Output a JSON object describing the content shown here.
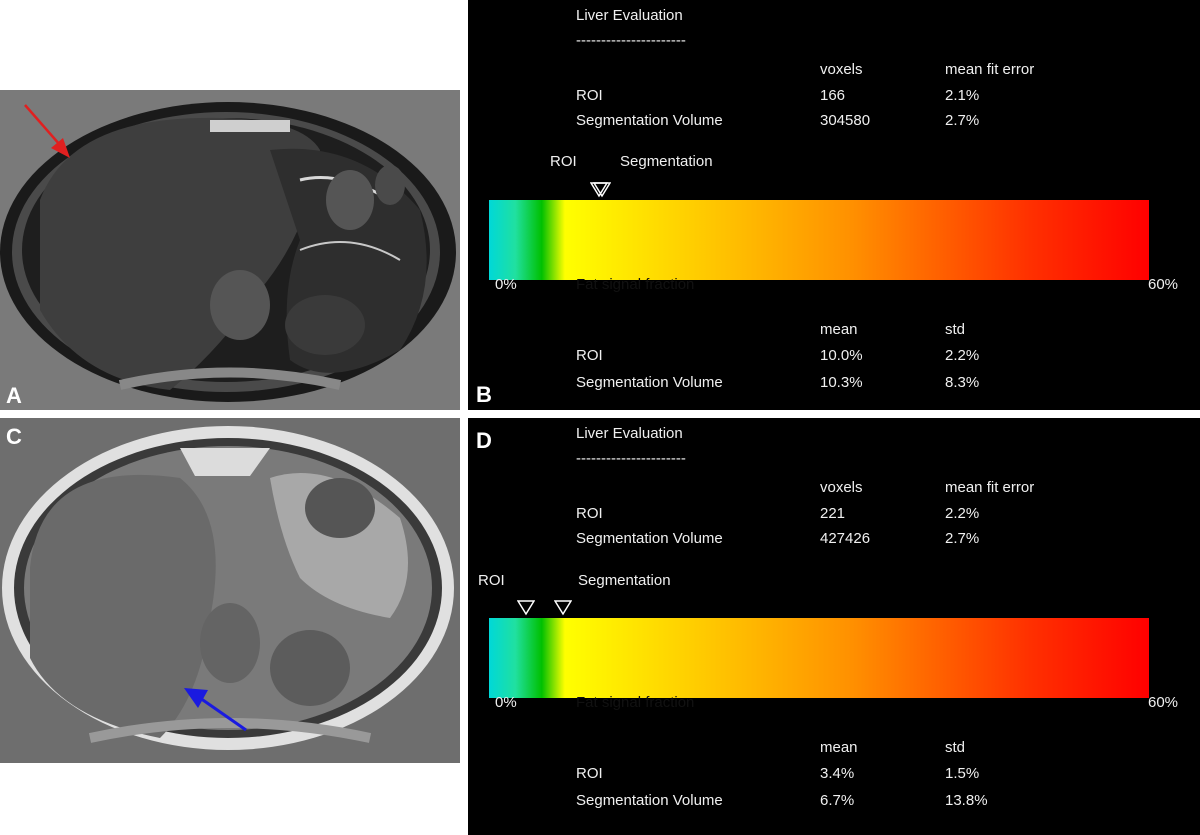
{
  "panels": [
    {
      "letter": "A",
      "arrow_color": "#e02020"
    },
    {
      "letter": "B",
      "title": "Liver Evaluation",
      "divider": "----------------------",
      "fit_table": {
        "col1": "voxels",
        "col2": "mean fit error",
        "rows": [
          {
            "label": "ROI",
            "v1": "166",
            "v2": "2.1%"
          },
          {
            "label": "Segmentation Volume",
            "v1": "304580",
            "v2": "2.7%"
          }
        ]
      },
      "markers": {
        "roi_label": "ROI",
        "seg_label": "Segmentation",
        "roi_value": 10.0,
        "seg_value": 10.3
      },
      "scale": {
        "min_label": "0%",
        "max_label": "60%",
        "caption": "Fat signal fraction",
        "min": 0,
        "max": 60
      },
      "stats_table": {
        "col1": "mean",
        "col2": "std",
        "rows": [
          {
            "label": "ROI",
            "v1": "10.0%",
            "v2": "2.2%"
          },
          {
            "label": "Segmentation Volume",
            "v1": "10.3%",
            "v2": "8.3%"
          }
        ]
      }
    },
    {
      "letter": "C",
      "arrow_color": "#1a1ae0"
    },
    {
      "letter": "D",
      "title": "Liver Evaluation",
      "divider": "----------------------",
      "fit_table": {
        "col1": "voxels",
        "col2": "mean fit error",
        "rows": [
          {
            "label": "ROI",
            "v1": "221",
            "v2": "2.2%"
          },
          {
            "label": "Segmentation Volume",
            "v1": "427426",
            "v2": "2.7%"
          }
        ]
      },
      "markers": {
        "roi_label": "ROI",
        "seg_label": "Segmentation",
        "roi_value": 3.4,
        "seg_value": 6.7
      },
      "scale": {
        "min_label": "0%",
        "max_label": "60%",
        "caption": "Fat signal fraction",
        "min": 0,
        "max": 60
      },
      "stats_table": {
        "col1": "mean",
        "col2": "std",
        "rows": [
          {
            "label": "ROI",
            "v1": "3.4%",
            "v2": "1.5%"
          },
          {
            "label": "Segmentation Volume",
            "v1": "6.7%",
            "v2": "13.8%"
          }
        ]
      }
    }
  ]
}
